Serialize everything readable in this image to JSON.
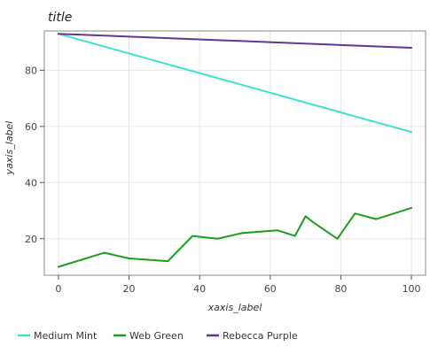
{
  "chart_data": {
    "type": "line",
    "title": "title",
    "xlabel": "xaxis_label",
    "ylabel": "yaxis_label",
    "xlim": [
      -4,
      104
    ],
    "ylim": [
      7,
      94
    ],
    "x_ticks": [
      0,
      20,
      40,
      60,
      80,
      100
    ],
    "y_ticks": [
      20,
      40,
      60,
      80
    ],
    "grid": true,
    "legend_position": "bottom",
    "series": [
      {
        "name": "Medium Mint",
        "color": "#40e0d0",
        "x": [
          0,
          100
        ],
        "y": [
          93,
          58
        ]
      },
      {
        "name": "Web Green",
        "color": "#1b9e1b",
        "x": [
          0,
          13,
          20,
          31,
          38,
          45,
          52,
          62,
          67,
          70,
          72,
          79,
          84,
          90,
          100
        ],
        "y": [
          10,
          15,
          13,
          12,
          21,
          20,
          22,
          23,
          21,
          28,
          26,
          20,
          29,
          27,
          31
        ]
      },
      {
        "name": "Rebecca Purple",
        "color": "#663399",
        "x": [
          0,
          100
        ],
        "y": [
          93,
          88
        ]
      }
    ]
  }
}
